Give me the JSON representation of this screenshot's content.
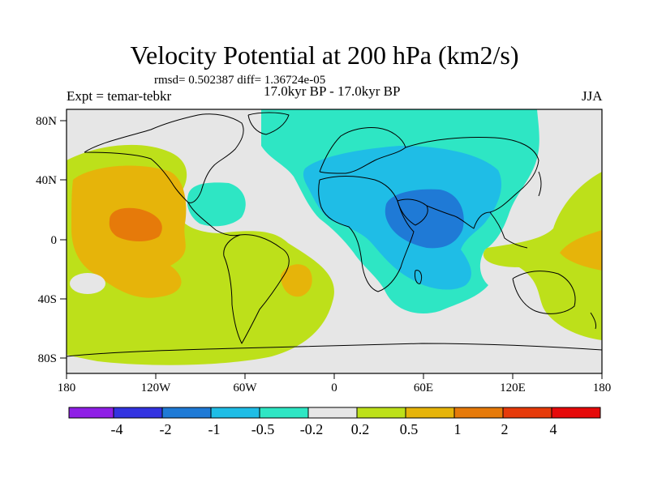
{
  "chart_data": {
    "type": "contour-map",
    "title": "Velocity Potential at 200 hPa (km2/s)",
    "stats_text": "rmsd= 0.502387 diff= 1.36724e-05",
    "left_label": "Expt = temar-tebkr",
    "center_label": "17.0kyr BP - 17.0kyr BP",
    "right_label": "JJA",
    "projection": "cylindrical-equidistant",
    "lon_range": [
      -180,
      180
    ],
    "lat_range": [
      -90,
      90
    ],
    "lon_ticks": [
      "180",
      "120W",
      "60W",
      "0",
      "60E",
      "120E",
      "180"
    ],
    "lat_ticks": [
      "80N",
      "40N",
      "0",
      "40S",
      "80S"
    ],
    "lon_tick_values": [
      -180,
      -120,
      -60,
      0,
      60,
      120,
      180
    ],
    "lat_tick_values": [
      80,
      40,
      0,
      -40,
      -80
    ],
    "colorbar_levels": [
      "-4",
      "-2",
      "-1",
      "-0.5",
      "-0.2",
      "0.2",
      "0.5",
      "1",
      "2",
      "4"
    ],
    "colorbar_colors": [
      "#8f1fe6",
      "#3333e0",
      "#1f7ad6",
      "#1fbde6",
      "#2ee6c4",
      "#e6e6e6",
      "#bde01a",
      "#e6b40a",
      "#e67a0a",
      "#e63a0a",
      "#e60a0a"
    ],
    "regions": [
      {
        "label": "east-pacific-positive",
        "level": 0.5,
        "color": "#bde01a"
      },
      {
        "label": "east-pacific-core",
        "level": 1,
        "color": "#e6b40a"
      },
      {
        "label": "east-pacific-max",
        "level": 2,
        "color": "#e67a0a"
      },
      {
        "label": "south-atlantic-positive",
        "level": 1,
        "color": "#e6b40a"
      },
      {
        "label": "west-pacific-positive",
        "level": 1,
        "color": "#e6b40a"
      },
      {
        "label": "caribbean-negative",
        "level": -0.5,
        "color": "#2ee6c4"
      },
      {
        "label": "eurasia-negative",
        "level": -0.5,
        "color": "#2ee6c4"
      },
      {
        "label": "africa-asia-negative",
        "level": -1,
        "color": "#1fbde6"
      },
      {
        "label": "arabia-india-min",
        "level": -2,
        "color": "#1f7ad6"
      }
    ]
  }
}
